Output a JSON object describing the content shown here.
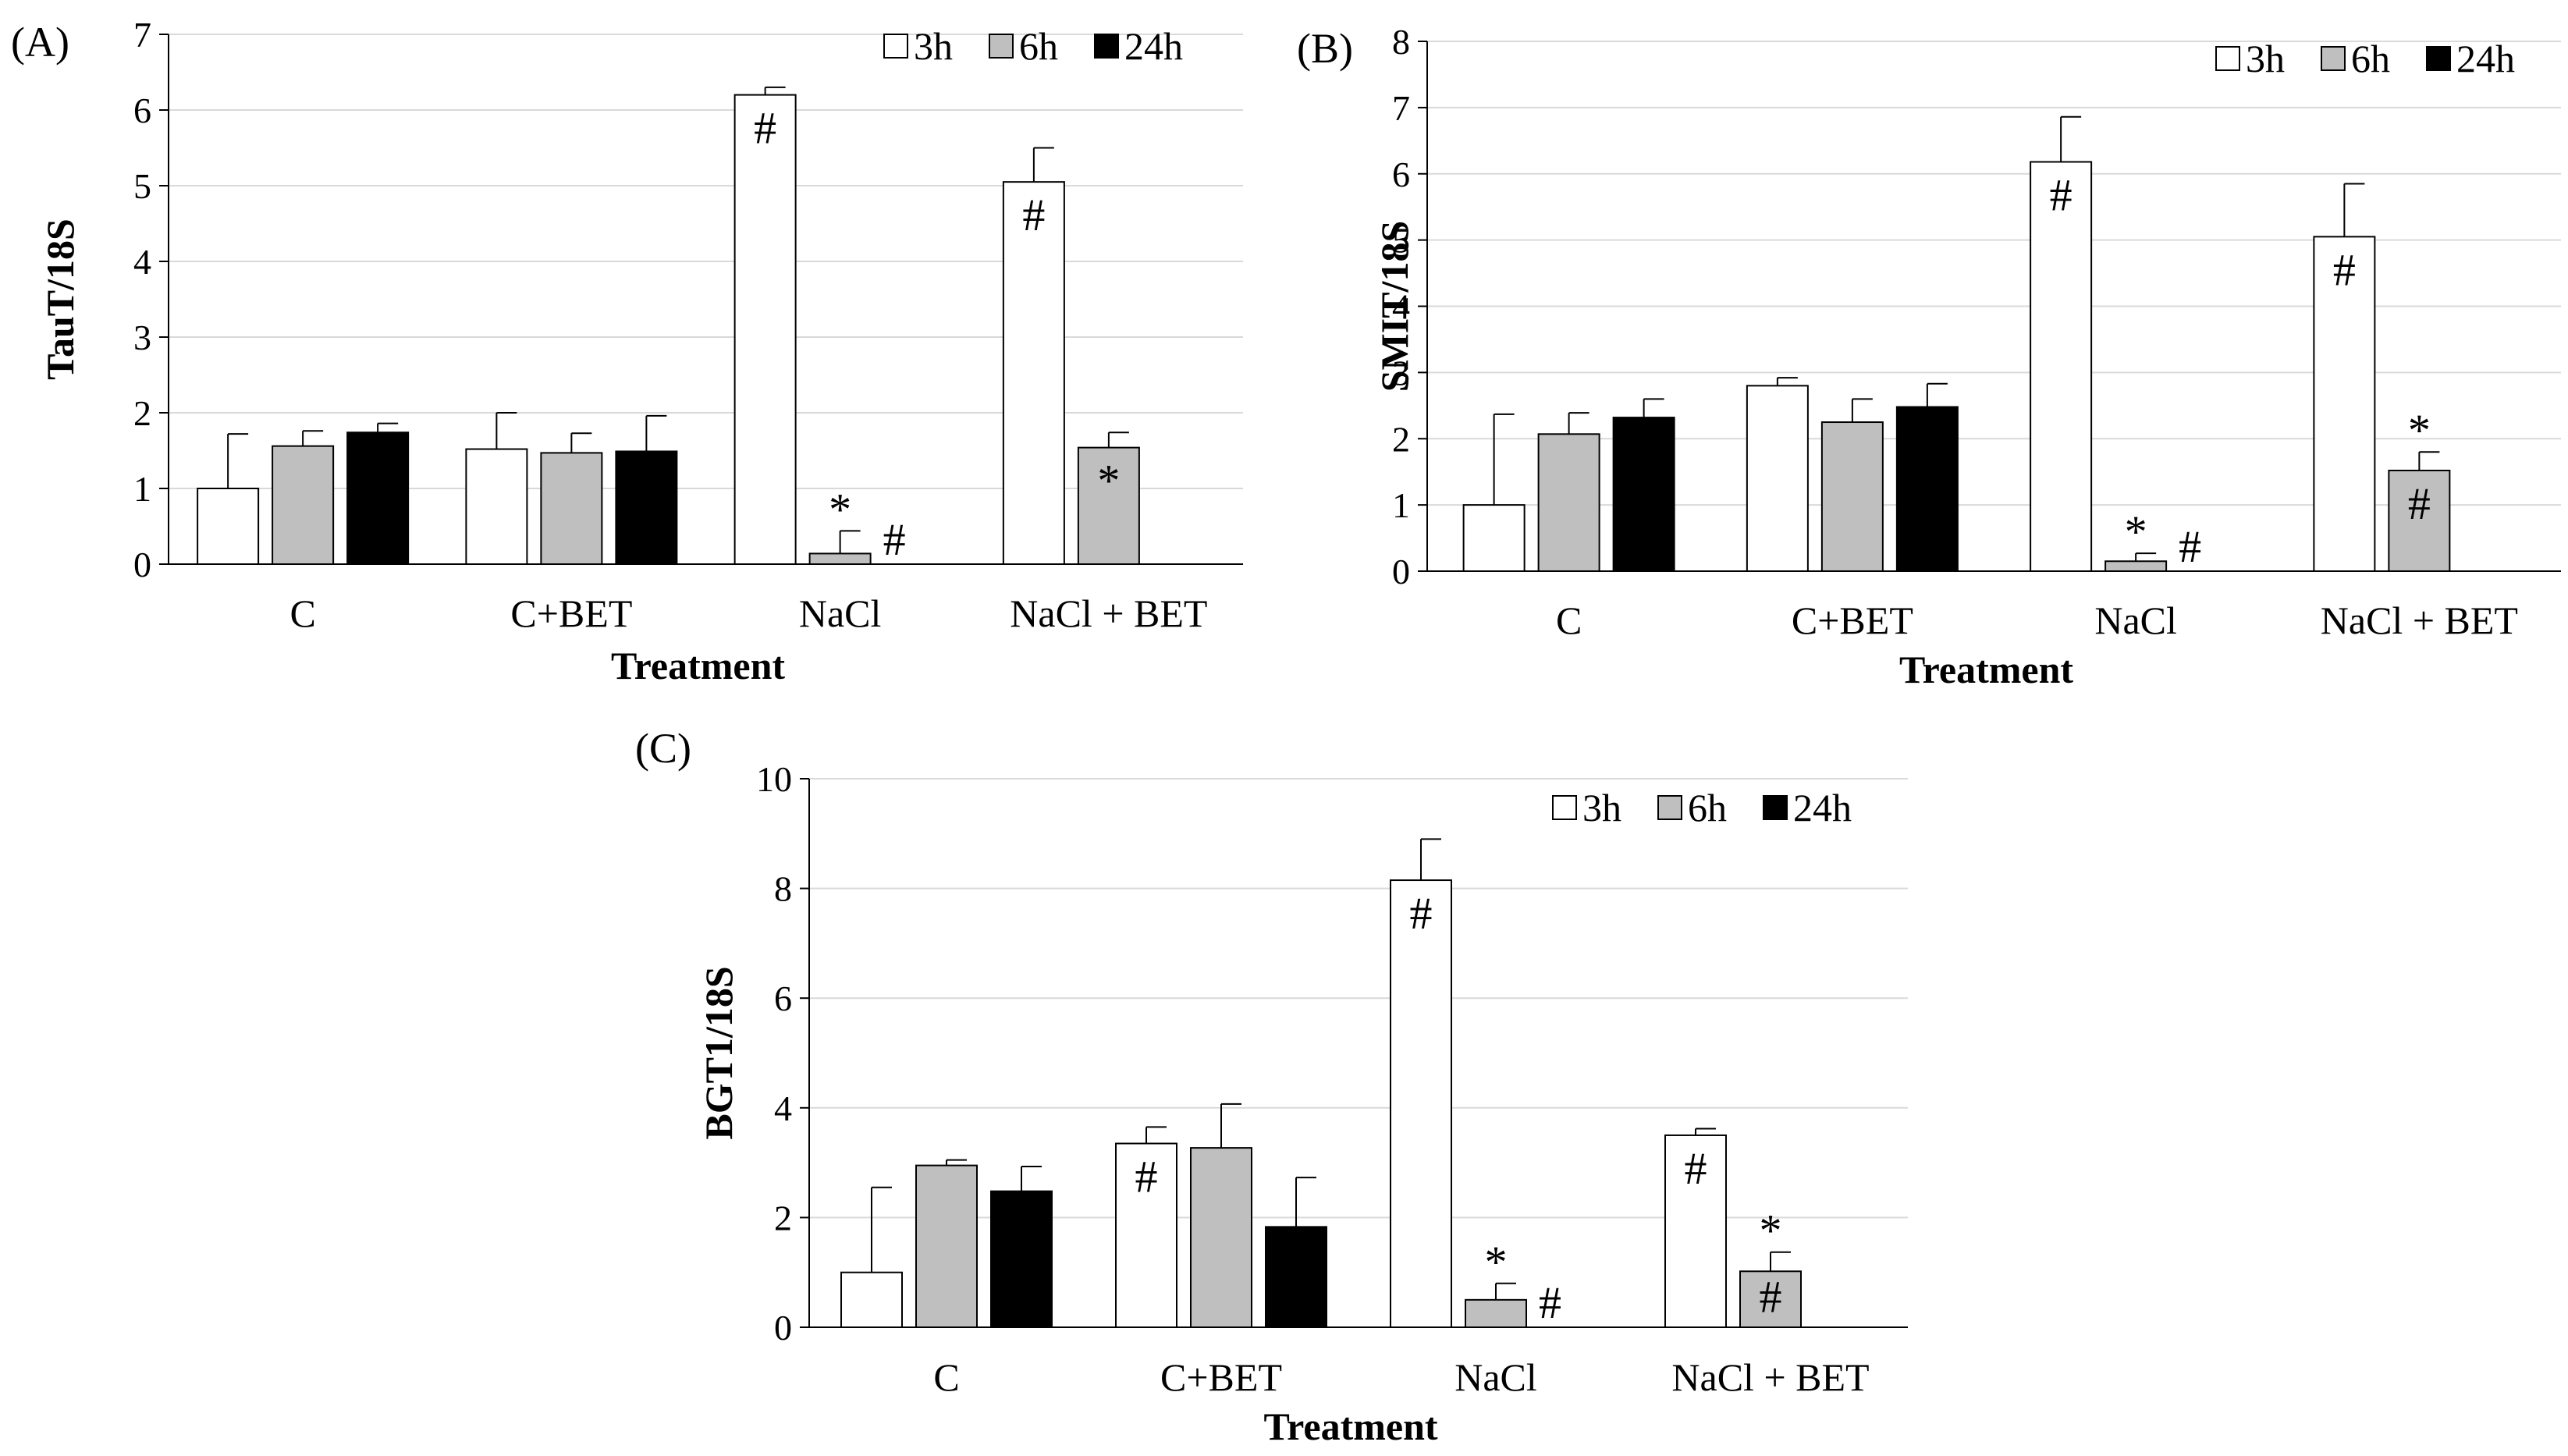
{
  "chart_data": [
    {
      "type": "bar",
      "panel_label": "(A)",
      "ylabel": "TauT/18S",
      "xlabel": "Treatment",
      "ylim": [
        0,
        7
      ],
      "yticks": [
        "0",
        "1",
        "2",
        "3",
        "4",
        "5",
        "6",
        "7"
      ],
      "grid": true,
      "legend_position": "top-right",
      "categories": [
        "C",
        "C+BET",
        "NaCl",
        "NaCl + BET"
      ],
      "series": [
        {
          "name": "3h",
          "color": "#ffffff",
          "values": [
            1.0,
            1.52,
            6.2,
            5.05
          ],
          "errors": [
            0.72,
            0.48,
            0.1,
            0.45
          ]
        },
        {
          "name": "6h",
          "color": "#bfbfbf",
          "values": [
            1.56,
            1.47,
            0.14,
            1.54
          ],
          "errors": [
            0.2,
            0.26,
            0.3,
            0.2
          ]
        },
        {
          "name": "24h",
          "color": "#000000",
          "values": [
            1.74,
            1.49,
            null,
            null
          ],
          "errors": [
            0.12,
            0.47,
            null,
            null
          ]
        }
      ],
      "annotations": [
        {
          "text": "#",
          "category": 2,
          "series": 0,
          "position": "inside"
        },
        {
          "text": "*",
          "category": 2,
          "series": 1,
          "position": "above-error"
        },
        {
          "text": "#",
          "category": 2,
          "series": 1,
          "position": "right"
        },
        {
          "text": "#",
          "category": 3,
          "series": 0,
          "position": "inside"
        },
        {
          "text": "*",
          "category": 3,
          "series": 1,
          "position": "inside"
        }
      ]
    },
    {
      "type": "bar",
      "panel_label": "(B)",
      "ylabel": "SMIT/18S",
      "xlabel": "Treatment",
      "ylim": [
        0,
        8
      ],
      "yticks": [
        "0",
        "1",
        "2",
        "3",
        "4",
        "5",
        "6",
        "7",
        "8"
      ],
      "grid": true,
      "legend_position": "top-right",
      "categories": [
        "C",
        "C+BET",
        "NaCl",
        "NaCl + BET"
      ],
      "series": [
        {
          "name": "3h",
          "color": "#ffffff",
          "values": [
            1.0,
            2.8,
            6.18,
            5.05
          ],
          "errors": [
            1.37,
            0.12,
            0.68,
            0.8
          ]
        },
        {
          "name": "6h",
          "color": "#bfbfbf",
          "values": [
            2.07,
            2.25,
            0.15,
            1.52
          ],
          "errors": [
            0.32,
            0.35,
            0.12,
            0.28
          ]
        },
        {
          "name": "24h",
          "color": "#000000",
          "values": [
            2.32,
            2.48,
            null,
            null
          ],
          "errors": [
            0.28,
            0.35,
            null,
            null
          ]
        }
      ],
      "annotations": [
        {
          "text": "#",
          "category": 2,
          "series": 0,
          "position": "inside"
        },
        {
          "text": "*",
          "category": 2,
          "series": 1,
          "position": "above-error"
        },
        {
          "text": "#",
          "category": 2,
          "series": 1,
          "position": "right"
        },
        {
          "text": "#",
          "category": 3,
          "series": 0,
          "position": "inside"
        },
        {
          "text": "*",
          "category": 3,
          "series": 1,
          "position": "above-error"
        },
        {
          "text": "#",
          "category": 3,
          "series": 1,
          "position": "inside"
        }
      ]
    },
    {
      "type": "bar",
      "panel_label": "(C)",
      "ylabel": "BGT1/18S",
      "xlabel": "Treatment",
      "ylim": [
        0,
        10
      ],
      "yticks": [
        "0",
        "2",
        "4",
        "6",
        "8",
        "10"
      ],
      "grid": true,
      "legend_position": "top-right",
      "categories": [
        "C",
        "C+BET",
        "NaCl",
        "NaCl + BET"
      ],
      "series": [
        {
          "name": "3h",
          "color": "#ffffff",
          "values": [
            1.0,
            3.35,
            8.15,
            3.5
          ],
          "errors": [
            1.55,
            0.3,
            0.75,
            0.12
          ]
        },
        {
          "name": "6h",
          "color": "#bfbfbf",
          "values": [
            2.95,
            3.27,
            0.5,
            1.02
          ],
          "errors": [
            0.1,
            0.8,
            0.3,
            0.35
          ]
        },
        {
          "name": "24h",
          "color": "#000000",
          "values": [
            2.48,
            1.83,
            null,
            null
          ],
          "errors": [
            0.45,
            0.9,
            null,
            null
          ]
        }
      ],
      "annotations": [
        {
          "text": "#",
          "category": 1,
          "series": 0,
          "position": "inside"
        },
        {
          "text": "#",
          "category": 2,
          "series": 0,
          "position": "inside"
        },
        {
          "text": "*",
          "category": 2,
          "series": 1,
          "position": "above-error"
        },
        {
          "text": "#",
          "category": 2,
          "series": 1,
          "position": "right"
        },
        {
          "text": "#",
          "category": 3,
          "series": 0,
          "position": "inside"
        },
        {
          "text": "*",
          "category": 3,
          "series": 1,
          "position": "above-error"
        },
        {
          "text": "#",
          "category": 3,
          "series": 1,
          "position": "inside"
        }
      ]
    }
  ]
}
